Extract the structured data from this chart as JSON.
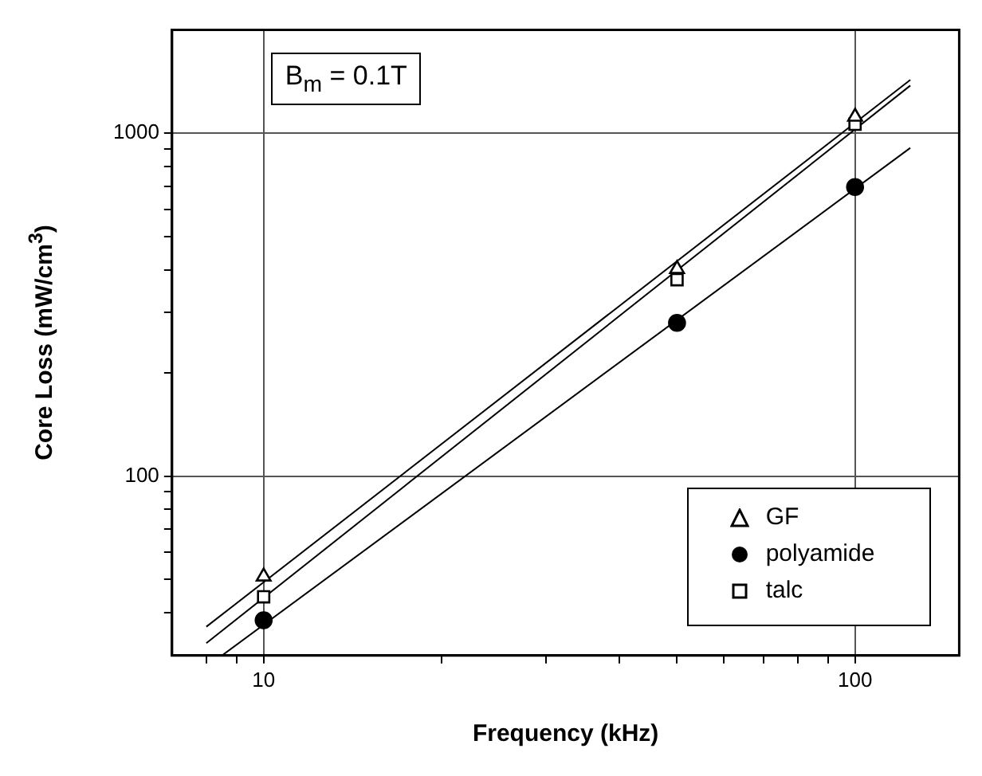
{
  "chart_data": {
    "type": "scatter",
    "xlabel": "Frequency (kHz)",
    "ylabel": "Core Loss (mW/cm$^{3}$)",
    "annotations": [
      "B$_{m}$ = 0.1T"
    ],
    "log": "xy",
    "grid": true,
    "legend": "bottom right",
    "xlim": [
      7,
      150
    ],
    "ylim": [
      30,
      2000
    ],
    "xticks": [
      {
        "value": 8,
        "label": null
      },
      {
        "value": 9,
        "label": null
      },
      10,
      {
        "value": 20,
        "label": null
      },
      {
        "value": 30,
        "label": null
      },
      {
        "value": 40,
        "label": null
      },
      {
        "value": 50,
        "label": null
      },
      {
        "value": 60,
        "label": null
      },
      {
        "value": 70,
        "label": null
      },
      {
        "value": 80,
        "label": null
      },
      {
        "value": 90,
        "label": null
      },
      100
    ],
    "yticks": [
      {
        "value": 40,
        "label": null
      },
      {
        "value": 50,
        "label": null
      },
      {
        "value": 60,
        "label": null
      },
      {
        "value": 70,
        "label": null
      },
      {
        "value": 80,
        "label": null
      },
      {
        "value": 90,
        "label": null
      },
      100,
      {
        "value": 200,
        "label": null
      },
      {
        "value": 300,
        "label": null
      },
      {
        "value": 400,
        "label": null
      },
      {
        "value": 500,
        "label": null
      },
      {
        "value": 600,
        "label": null
      },
      {
        "value": 700,
        "label": null
      },
      {
        "value": 800,
        "label": null
      },
      {
        "value": 900,
        "label": null
      },
      1000
    ],
    "series": [
      {
        "name": "GF",
        "marker": "triangle",
        "color": "#000000",
        "x": [
          10,
          50,
          100
        ],
        "values": [
          51,
          402,
          1117
        ]
      },
      {
        "name": "polyamide",
        "marker": "circle",
        "color": "#000000",
        "x": [
          10,
          50,
          100
        ],
        "values": [
          38,
          280,
          697
        ]
      },
      {
        "name": "talc",
        "marker": "square",
        "color": "#000000",
        "x": [
          10,
          50,
          100
        ],
        "values": [
          44.5,
          374,
          1062
        ]
      },
      {
        "type": "line",
        "marker": "none",
        "line_style": "solid",
        "color": "#000000",
        "x": [
          8,
          124
        ],
        "values": [
          36.4,
          1430
        ]
      },
      {
        "type": "line",
        "marker": "none",
        "line_style": "solid",
        "color": "#000000",
        "x": [
          8,
          124
        ],
        "values": [
          32.6,
          1377
        ]
      },
      {
        "type": "line",
        "marker": "none",
        "line_style": "solid",
        "color": "#000000",
        "x": [
          8.5,
          124
        ],
        "values": [
          30,
          906
        ]
      }
    ]
  }
}
